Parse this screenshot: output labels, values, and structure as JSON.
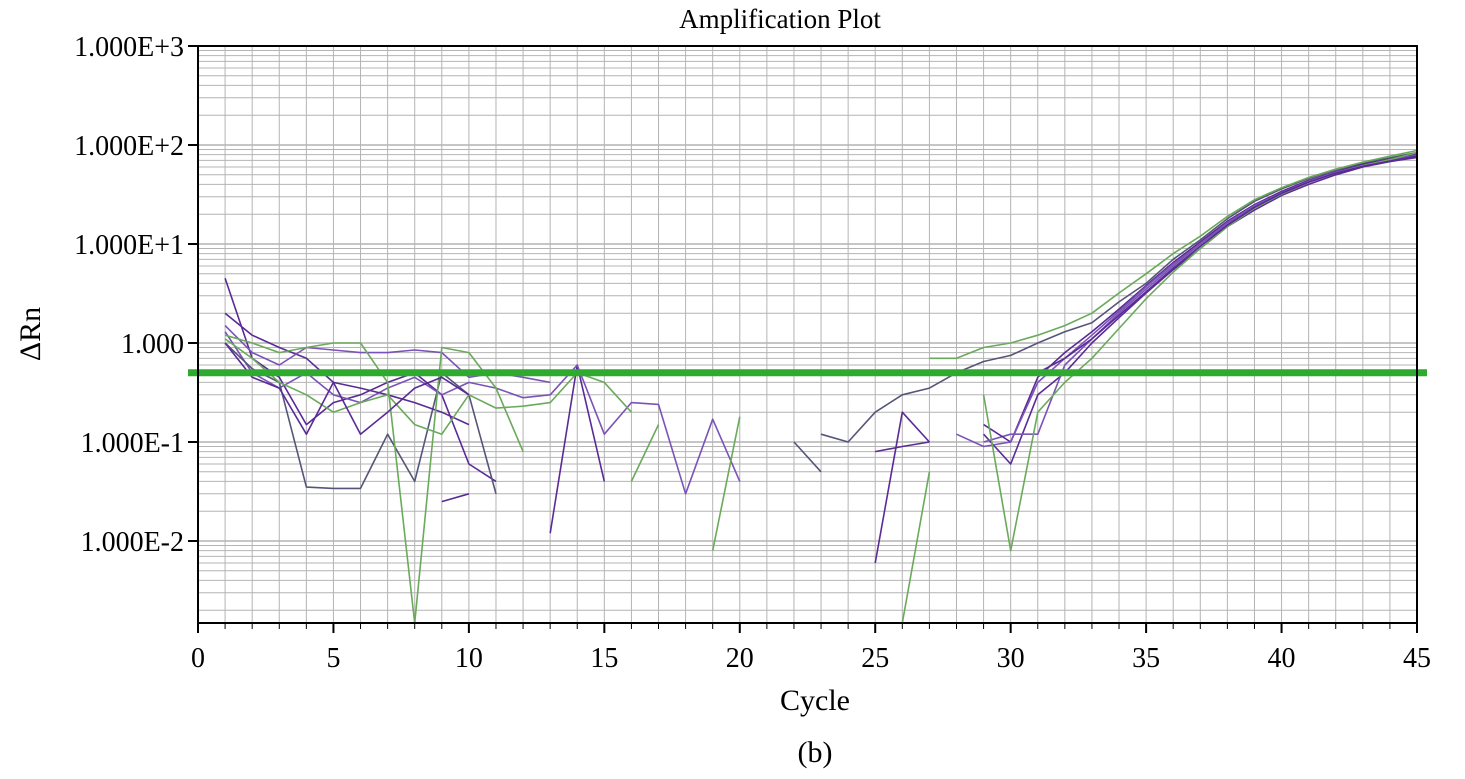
{
  "chart_data": {
    "type": "line",
    "title": "Amplification Plot",
    "xlabel": "Cycle",
    "ylabel": "ΔRn",
    "caption": "(b)",
    "x_range": [
      0,
      45
    ],
    "y_range": [
      0.0013,
      1000
    ],
    "y_scale": "log",
    "grid": true,
    "x_ticks": [
      0,
      5,
      10,
      15,
      20,
      25,
      30,
      35,
      40,
      45
    ],
    "x_tick_labels": [
      "0",
      "5",
      "10",
      "15",
      "20",
      "25",
      "30",
      "35",
      "40",
      "45"
    ],
    "y_ticks": [
      1000,
      100,
      10,
      1,
      0.1,
      0.01
    ],
    "y_tick_labels": [
      "1.000E+3",
      "1.000E+2",
      "1.000E+1",
      "1.000",
      "1.000E-1",
      "1.000E-2"
    ],
    "threshold": 0.5,
    "colors": {
      "threshold": "#2eaa2e",
      "purple": "#5a2a96",
      "violet": "#7b52b8",
      "slate": "#55557a",
      "green": "#6aaa5a",
      "grid": "#b4b4b4"
    },
    "series": [
      {
        "color": "purple",
        "points": [
          [
            1,
            4.5
          ],
          [
            2,
            0.7
          ],
          [
            3,
            0.45
          ],
          [
            4,
            0.15
          ],
          [
            5,
            0.25
          ],
          [
            6,
            0.3
          ],
          [
            7,
            0.4
          ],
          [
            8,
            0.5
          ],
          [
            9,
            0.3
          ],
          [
            10,
            0.06
          ],
          [
            11,
            0.04
          ],
          [
            12,
            null
          ],
          [
            13,
            0.012
          ],
          [
            14,
            0.6
          ],
          [
            15,
            0.04
          ],
          [
            16,
            null
          ],
          [
            25,
            0.006
          ],
          [
            26,
            0.2
          ],
          [
            27,
            0.1
          ],
          [
            28,
            null
          ],
          [
            29,
            0.12
          ],
          [
            30,
            0.06
          ],
          [
            31,
            0.3
          ],
          [
            32,
            0.5
          ],
          [
            33,
            1.0
          ],
          [
            34,
            1.8
          ],
          [
            35,
            3.2
          ],
          [
            36,
            5.5
          ],
          [
            37,
            9
          ],
          [
            38,
            15
          ],
          [
            39,
            22
          ],
          [
            40,
            31
          ],
          [
            41,
            40
          ],
          [
            42,
            50
          ],
          [
            43,
            60
          ],
          [
            44,
            68
          ],
          [
            45,
            75
          ]
        ]
      },
      {
        "color": "violet",
        "points": [
          [
            1,
            1.3
          ],
          [
            2,
            0.5
          ],
          [
            3,
            0.35
          ],
          [
            4,
            0.5
          ],
          [
            5,
            0.3
          ],
          [
            6,
            0.25
          ],
          [
            7,
            0.35
          ],
          [
            8,
            0.45
          ],
          [
            9,
            0.3
          ],
          [
            10,
            0.4
          ],
          [
            11,
            0.35
          ],
          [
            12,
            0.28
          ],
          [
            13,
            0.3
          ],
          [
            14,
            0.6
          ],
          [
            15,
            0.12
          ],
          [
            16,
            0.25
          ],
          [
            17,
            0.24
          ],
          [
            18,
            0.03
          ],
          [
            19,
            0.17
          ],
          [
            20,
            0.04
          ],
          [
            21,
            null
          ],
          [
            29,
            0.1
          ],
          [
            30,
            0.12
          ],
          [
            31,
            0.12
          ],
          [
            32,
            0.6
          ],
          [
            33,
            1.1
          ],
          [
            34,
            2.0
          ],
          [
            35,
            3.5
          ],
          [
            36,
            6.0
          ],
          [
            37,
            10
          ],
          [
            38,
            16
          ],
          [
            39,
            24
          ],
          [
            40,
            33
          ],
          [
            41,
            43
          ],
          [
            42,
            53
          ],
          [
            43,
            63
          ],
          [
            44,
            71
          ],
          [
            45,
            80
          ]
        ]
      },
      {
        "color": "slate",
        "points": [
          [
            1,
            1.0
          ],
          [
            2,
            0.55
          ],
          [
            3,
            0.4
          ],
          [
            4,
            0.035
          ],
          [
            5,
            0.034
          ],
          [
            6,
            0.034
          ],
          [
            7,
            0.12
          ],
          [
            8,
            0.04
          ],
          [
            9,
            0.5
          ],
          [
            10,
            0.3
          ],
          [
            11,
            0.03
          ],
          [
            12,
            null
          ],
          [
            22,
            0.1
          ],
          [
            23,
            0.05
          ],
          [
            24,
            null
          ],
          [
            23,
            0.12
          ],
          [
            24,
            0.1
          ],
          [
            25,
            0.2
          ],
          [
            26,
            0.3
          ],
          [
            27,
            0.35
          ],
          [
            28,
            0.5
          ],
          [
            29,
            0.65
          ],
          [
            30,
            0.75
          ],
          [
            31,
            1.0
          ],
          [
            32,
            1.3
          ],
          [
            33,
            1.6
          ],
          [
            34,
            2.6
          ],
          [
            35,
            4.0
          ],
          [
            36,
            7.0
          ],
          [
            37,
            11
          ],
          [
            38,
            18
          ],
          [
            39,
            27
          ],
          [
            40,
            36
          ],
          [
            41,
            46
          ],
          [
            42,
            56
          ],
          [
            43,
            66
          ],
          [
            44,
            74
          ],
          [
            45,
            84
          ]
        ]
      },
      {
        "color": "purple",
        "points": [
          [
            1,
            2.0
          ],
          [
            2,
            1.2
          ],
          [
            3,
            0.9
          ],
          [
            4,
            0.7
          ],
          [
            5,
            0.4
          ],
          [
            6,
            0.35
          ],
          [
            7,
            0.3
          ],
          [
            8,
            0.25
          ],
          [
            9,
            0.2
          ],
          [
            10,
            0.15
          ],
          [
            11,
            null
          ],
          [
            25,
            0.08
          ],
          [
            26,
            0.09
          ],
          [
            27,
            0.1
          ],
          [
            28,
            null
          ],
          [
            29,
            0.15
          ],
          [
            30,
            0.1
          ],
          [
            31,
            0.45
          ],
          [
            32,
            0.8
          ],
          [
            33,
            1.3
          ],
          [
            34,
            2.2
          ],
          [
            35,
            3.8
          ],
          [
            36,
            6.5
          ],
          [
            37,
            10.5
          ],
          [
            38,
            17
          ],
          [
            39,
            25
          ],
          [
            40,
            34
          ],
          [
            41,
            44
          ],
          [
            42,
            54
          ],
          [
            43,
            64
          ],
          [
            44,
            72
          ],
          [
            45,
            82
          ]
        ]
      },
      {
        "color": "violet",
        "points": [
          [
            1,
            1.5
          ],
          [
            2,
            0.8
          ],
          [
            3,
            0.6
          ],
          [
            4,
            0.9
          ],
          [
            5,
            0.85
          ],
          [
            6,
            0.8
          ],
          [
            7,
            0.8
          ],
          [
            8,
            0.85
          ],
          [
            9,
            0.8
          ],
          [
            10,
            0.45
          ],
          [
            11,
            0.5
          ],
          [
            12,
            0.45
          ],
          [
            13,
            0.4
          ],
          [
            14,
            null
          ],
          [
            28,
            0.12
          ],
          [
            29,
            0.09
          ],
          [
            30,
            0.1
          ],
          [
            31,
            0.4
          ],
          [
            32,
            0.7
          ],
          [
            33,
            1.2
          ],
          [
            34,
            2.1
          ],
          [
            35,
            3.7
          ],
          [
            36,
            6.3
          ],
          [
            37,
            10
          ],
          [
            38,
            16.5
          ],
          [
            39,
            24.5
          ],
          [
            40,
            33
          ],
          [
            41,
            43
          ],
          [
            42,
            53
          ],
          [
            43,
            62
          ],
          [
            44,
            70
          ],
          [
            45,
            79
          ]
        ]
      },
      {
        "color": "green",
        "points": [
          [
            1,
            1.2
          ],
          [
            2,
            1.0
          ],
          [
            3,
            0.8
          ],
          [
            4,
            0.9
          ],
          [
            5,
            1.0
          ],
          [
            6,
            1.0
          ],
          [
            7,
            0.4
          ],
          [
            8,
            0.0013
          ],
          [
            9,
            0.9
          ],
          [
            10,
            0.8
          ],
          [
            11,
            0.35
          ],
          [
            12,
            0.08
          ],
          [
            13,
            null
          ],
          [
            16,
            0.04
          ],
          [
            17,
            0.15
          ],
          [
            18,
            null
          ],
          [
            19,
            0.008
          ],
          [
            20,
            0.18
          ],
          [
            21,
            null
          ],
          [
            26,
            0.0013
          ],
          [
            27,
            0.05
          ],
          [
            28,
            null
          ],
          [
            29,
            0.3
          ],
          [
            30,
            0.008
          ],
          [
            31,
            0.2
          ],
          [
            32,
            0.4
          ],
          [
            33,
            0.7
          ],
          [
            34,
            1.4
          ],
          [
            35,
            2.8
          ],
          [
            36,
            5.2
          ],
          [
            37,
            9
          ],
          [
            38,
            15
          ],
          [
            39,
            23
          ],
          [
            40,
            32
          ],
          [
            41,
            42
          ],
          [
            42,
            52
          ],
          [
            43,
            62
          ],
          [
            44,
            71
          ],
          [
            45,
            84
          ]
        ]
      },
      {
        "color": "green",
        "points": [
          [
            1,
            1.1
          ],
          [
            2,
            0.7
          ],
          [
            3,
            0.4
          ],
          [
            4,
            0.3
          ],
          [
            5,
            0.2
          ],
          [
            6,
            0.25
          ],
          [
            7,
            0.3
          ],
          [
            8,
            0.15
          ],
          [
            9,
            0.12
          ],
          [
            10,
            0.3
          ],
          [
            11,
            0.22
          ],
          [
            12,
            0.23
          ],
          [
            13,
            0.25
          ],
          [
            14,
            0.5
          ],
          [
            15,
            0.4
          ],
          [
            16,
            0.2
          ],
          [
            17,
            null
          ],
          [
            27,
            0.7
          ],
          [
            28,
            0.7
          ],
          [
            29,
            0.9
          ],
          [
            30,
            1.0
          ],
          [
            31,
            1.2
          ],
          [
            32,
            1.5
          ],
          [
            33,
            2.0
          ],
          [
            34,
            3.2
          ],
          [
            35,
            5.0
          ],
          [
            36,
            8.0
          ],
          [
            37,
            12
          ],
          [
            38,
            19
          ],
          [
            39,
            28
          ],
          [
            40,
            37
          ],
          [
            41,
            47
          ],
          [
            42,
            57
          ],
          [
            43,
            67
          ],
          [
            44,
            77
          ],
          [
            45,
            88
          ]
        ]
      },
      {
        "color": "purple",
        "points": [
          [
            1,
            1.0
          ],
          [
            2,
            0.45
          ],
          [
            3,
            0.35
          ],
          [
            4,
            0.12
          ],
          [
            5,
            0.4
          ],
          [
            6,
            0.12
          ],
          [
            7,
            0.2
          ],
          [
            8,
            0.35
          ],
          [
            9,
            0.45
          ],
          [
            10,
            0.3
          ],
          [
            11,
            null
          ],
          [
            31,
            0.5
          ],
          [
            32,
            0.7
          ],
          [
            33,
            1.1
          ],
          [
            34,
            1.9
          ],
          [
            35,
            3.3
          ],
          [
            36,
            5.7
          ],
          [
            37,
            9.5
          ],
          [
            38,
            15.5
          ],
          [
            39,
            23.5
          ],
          [
            40,
            32.5
          ],
          [
            41,
            42
          ],
          [
            42,
            52
          ],
          [
            43,
            61
          ],
          [
            44,
            69
          ],
          [
            45,
            77
          ]
        ]
      },
      {
        "color": "purple",
        "points": [
          [
            9,
            0.025
          ],
          [
            10,
            0.03
          ]
        ]
      }
    ]
  }
}
